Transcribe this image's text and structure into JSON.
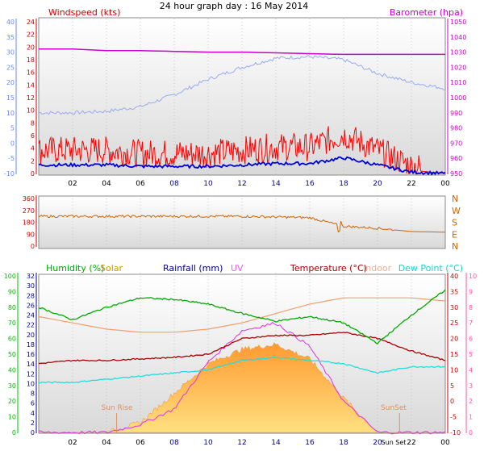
{
  "title": "24 hour graph day : 16 May 2014",
  "panels": {
    "wind": {
      "left_label": "Windspeed (kts)",
      "right_label": "Barometer (hpa)"
    },
    "climate": {
      "labels": {
        "humidity": "Humidity (%)",
        "solar": "Solar",
        "rainfall": "Rainfall (mm)",
        "uv": "UV",
        "temperature": "Temperature (°C)",
        "indoor": "Indoor",
        "dewpoint": "Dew Point (°C)"
      },
      "annotations": {
        "sunrise": "Sun Rise",
        "sunset": "SunSet",
        "sunset_axis": "Sun Set"
      }
    }
  },
  "x_ticks": [
    "02",
    "04",
    "06",
    "08",
    "10",
    "12",
    "14",
    "16",
    "18",
    "20",
    "22",
    "00"
  ],
  "x_tick_colors": [
    "#000000",
    "#000000",
    "#000000",
    "#000099",
    "#000099",
    "#000099",
    "#000099",
    "#000099",
    "#000099",
    "#000099",
    "#000000",
    "#000000"
  ],
  "colors": {
    "windspeed": "#ff0000",
    "wind_avg": "#0000dd",
    "barometer": "#cc00cc",
    "wind_gray": "#9aaaee",
    "direction": "#cc6600",
    "humidity": "#00aa00",
    "solar": "#ffb030",
    "rainfall": "#000099",
    "uv": "#dd33dd",
    "temperature": "#aa0000",
    "indoor": "#f0a070",
    "dewpoint": "#22dddd",
    "left_axis_blue": "#6688ff",
    "green_axis": "#00bb00",
    "pink_axis": "#ff55aa"
  },
  "chart_data": [
    {
      "type": "line",
      "title": "24 hour graph day : 16 May 2014",
      "axes": {
        "left_outer": {
          "ticks": [
            -10,
            -5,
            0,
            5,
            10,
            15,
            20,
            25,
            30,
            35,
            40
          ],
          "color": "#6688ff"
        },
        "left_inner": {
          "label": "Windspeed (kts)",
          "ticks": [
            0,
            2,
            4,
            6,
            8,
            10,
            12,
            14,
            16,
            18,
            20,
            22,
            24
          ],
          "color": "#cc0000"
        },
        "right": {
          "label": "Barometer (hpa)",
          "ticks": [
            950,
            960,
            970,
            980,
            990,
            1000,
            1010,
            1020,
            1030,
            1040,
            1050
          ],
          "color": "#cc00cc"
        }
      },
      "x": [
        0,
        2,
        4,
        6,
        8,
        10,
        12,
        14,
        16,
        18,
        20,
        22,
        24
      ],
      "series": [
        {
          "name": "Windspeed (kts)",
          "values": [
            3,
            3,
            3,
            2.5,
            2.5,
            2.5,
            3,
            3.5,
            3.5,
            5.5,
            3,
            0.5,
            0
          ]
        },
        {
          "name": "Barometer (hpa)",
          "values": [
            1032,
            1032,
            1031,
            1031,
            1030.5,
            1030,
            1030,
            1029.5,
            1029,
            1028.5,
            1028.5,
            1028.5,
            1028.5
          ]
        },
        {
          "values": [
            10,
            10,
            10.5,
            12,
            16,
            21,
            25,
            28,
            28.5,
            27.5,
            23,
            20,
            18
          ]
        }
      ]
    },
    {
      "type": "line",
      "axes": {
        "left": {
          "ticks": [
            0,
            90,
            180,
            270,
            360
          ],
          "color": "#cc0000"
        },
        "right": {
          "ticks": [
            "N",
            "W",
            "S",
            "E",
            "N"
          ],
          "color": "#cc6600"
        }
      },
      "x": [
        0,
        2,
        4,
        6,
        8,
        10,
        12,
        14,
        16,
        18,
        20,
        22,
        24
      ],
      "series": [
        {
          "values": [
            225,
            225,
            225,
            225,
            225,
            225,
            225,
            220,
            215,
            150,
            135,
            110,
            105
          ]
        }
      ]
    },
    {
      "type": "line",
      "axes": {
        "left_outer": {
          "label": "Humidity (%)",
          "ticks": [
            0,
            10,
            20,
            30,
            40,
            50,
            60,
            70,
            80,
            90,
            100
          ],
          "color": "#00bb00"
        },
        "left_inner": {
          "label": "Rainfall (mm)",
          "ticks": [
            0,
            2,
            4,
            6,
            8,
            10,
            12,
            14,
            16,
            18,
            20,
            22,
            24,
            26,
            28,
            30,
            32
          ],
          "color": "#000099"
        },
        "right_inner": {
          "label": "Temperature (°C)",
          "ticks": [
            -10,
            -5,
            0,
            5,
            10,
            15,
            20,
            25,
            30,
            35,
            40
          ],
          "color": "#cc0000"
        },
        "right_outer": {
          "label": "UV",
          "ticks": [
            0,
            1,
            2,
            3,
            4,
            5,
            6,
            7,
            8,
            9,
            10
          ],
          "color": "#ff55aa"
        }
      },
      "x": [
        0,
        2,
        4,
        6,
        8,
        10,
        12,
        14,
        16,
        18,
        20,
        22,
        24
      ],
      "series": [
        {
          "name": "Humidity (%)",
          "values": [
            80,
            72,
            80,
            86,
            85,
            82,
            76,
            71,
            74,
            70,
            57,
            75,
            91
          ]
        },
        {
          "name": "Temperature (°C)",
          "values": [
            12,
            13,
            13,
            13.5,
            14,
            15,
            20,
            21,
            21,
            22,
            20,
            16,
            13
          ]
        },
        {
          "name": "Indoor",
          "values": [
            27,
            25,
            23,
            22,
            22,
            23,
            25,
            28,
            31,
            33,
            33,
            33,
            32
          ]
        },
        {
          "name": "Dew Point (°C)",
          "values": [
            6,
            6,
            7,
            8,
            9,
            10,
            13,
            14,
            13,
            12,
            9,
            11,
            11
          ]
        },
        {
          "name": "Solar",
          "values": [
            0,
            0,
            0,
            2,
            8,
            14,
            17,
            18,
            15,
            7,
            0,
            0,
            0
          ]
        },
        {
          "name": "UV",
          "values": [
            0,
            0,
            0,
            0.5,
            1.5,
            4.5,
            6.5,
            7,
            5.5,
            2,
            0,
            0,
            0
          ]
        }
      ]
    }
  ]
}
